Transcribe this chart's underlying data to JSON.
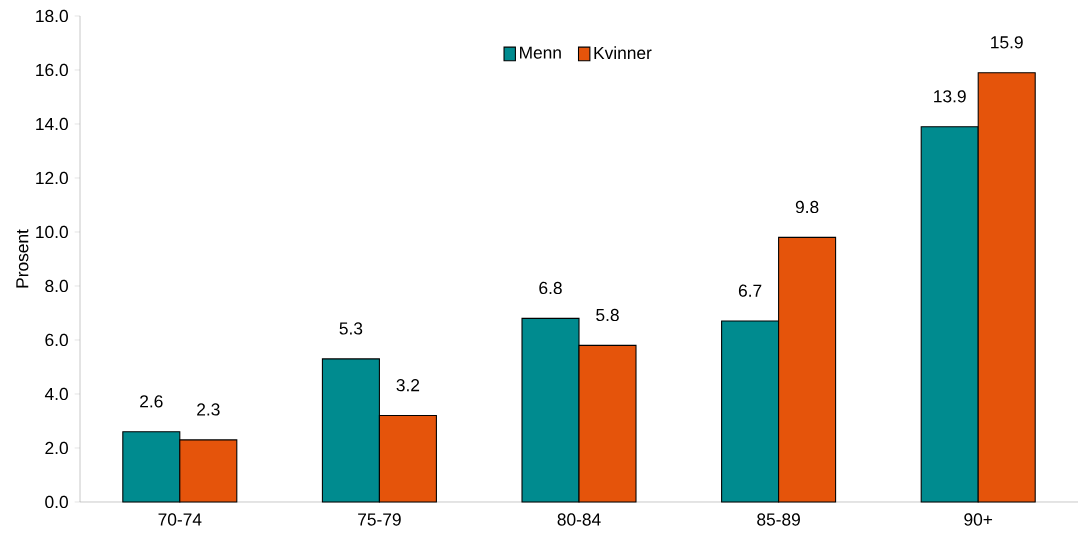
{
  "chart_data": {
    "type": "bar",
    "ylabel": "Prosent",
    "categories": [
      "70-74",
      "75-79",
      "80-84",
      "85-89",
      "90+"
    ],
    "series": [
      {
        "name": "Menn",
        "color": "#008b8f",
        "values": [
          2.6,
          5.3,
          6.8,
          6.7,
          13.9
        ]
      },
      {
        "name": "Kvinner",
        "color": "#e5540b",
        "values": [
          2.3,
          3.2,
          5.8,
          9.8,
          15.9
        ]
      }
    ],
    "ylim": [
      0,
      18
    ],
    "yticks": [
      {
        "value": 0,
        "label": "0.0"
      },
      {
        "value": 2,
        "label": "2.0"
      },
      {
        "value": 4,
        "label": "4.0"
      },
      {
        "value": 6,
        "label": "6.0"
      },
      {
        "value": 8,
        "label": "8.0"
      },
      {
        "value": 10,
        "label": "10.0"
      },
      {
        "value": 12,
        "label": "12.0"
      },
      {
        "value": 14,
        "label": "14.0"
      },
      {
        "value": 16,
        "label": "16.0"
      },
      {
        "value": 18,
        "label": "18.0"
      }
    ],
    "data_labels": true,
    "grid": false,
    "legend": "top"
  }
}
